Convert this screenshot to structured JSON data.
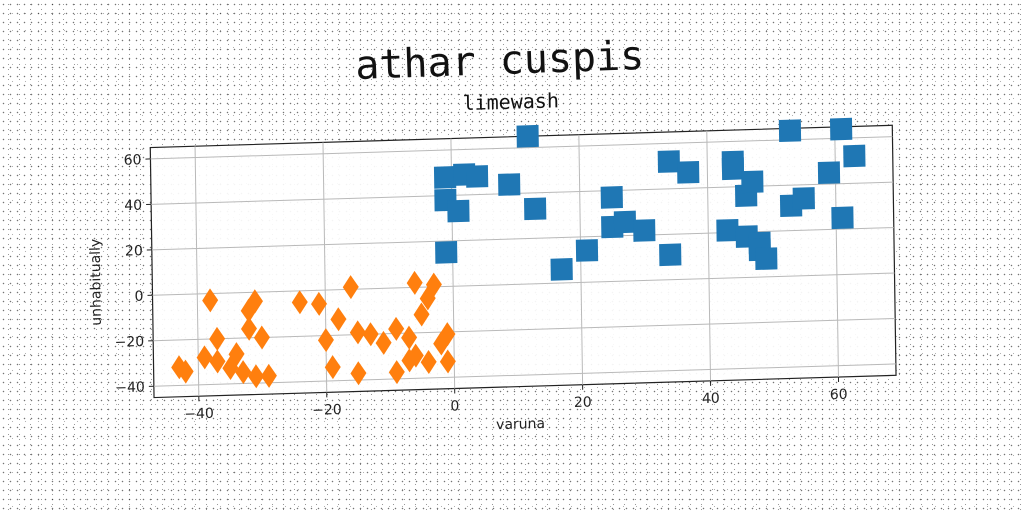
{
  "suptitle": "athar cuspis",
  "chart_data": {
    "type": "scatter",
    "title": "limewash",
    "xlabel": "varuna",
    "ylabel": "unhabitually",
    "xlim": [
      -47,
      69
    ],
    "ylim": [
      -45,
      65
    ],
    "xticks": [
      -40,
      -20,
      0,
      20,
      40,
      60
    ],
    "yticks": [
      -40,
      -20,
      0,
      20,
      40,
      60
    ],
    "grid": true,
    "series": [
      {
        "marker": "square",
        "color": "#1f77b4",
        "points": [
          [
            -1,
            48
          ],
          [
            2,
            49
          ],
          [
            4,
            48
          ],
          [
            -1,
            38
          ],
          [
            1,
            33
          ],
          [
            -1,
            15
          ],
          [
            9,
            44
          ],
          [
            12,
            65
          ],
          [
            13,
            33
          ],
          [
            17,
            6
          ],
          [
            21,
            14
          ],
          [
            25,
            37
          ],
          [
            25,
            24
          ],
          [
            27,
            26
          ],
          [
            30,
            22
          ],
          [
            34,
            11
          ],
          [
            34,
            52
          ],
          [
            37,
            47
          ],
          [
            43,
            21
          ],
          [
            44,
            51
          ],
          [
            44,
            48
          ],
          [
            46,
            36
          ],
          [
            47,
            42
          ],
          [
            46,
            18
          ],
          [
            48,
            15
          ],
          [
            48,
            12
          ],
          [
            49,
            8
          ],
          [
            53,
            64
          ],
          [
            53,
            31
          ],
          [
            55,
            34
          ],
          [
            59,
            45
          ],
          [
            61,
            64
          ],
          [
            61,
            25
          ],
          [
            63,
            52
          ]
        ]
      },
      {
        "marker": "diamond",
        "color": "#ff7f0e",
        "points": [
          [
            -43,
            -32
          ],
          [
            -42,
            -34
          ],
          [
            -39,
            -28
          ],
          [
            -37,
            -30
          ],
          [
            -38,
            -3
          ],
          [
            -37,
            -20
          ],
          [
            -35,
            -33
          ],
          [
            -34,
            -27
          ],
          [
            -33,
            -35
          ],
          [
            -31,
            -37
          ],
          [
            -32,
            -16
          ],
          [
            -32,
            -8
          ],
          [
            -31,
            -4
          ],
          [
            -30,
            -20
          ],
          [
            -29,
            -37
          ],
          [
            -24,
            -5
          ],
          [
            -21,
            -6
          ],
          [
            -20,
            -22
          ],
          [
            -19,
            -34
          ],
          [
            -18,
            -13
          ],
          [
            -16,
            1
          ],
          [
            -15,
            -37
          ],
          [
            -15,
            -19
          ],
          [
            -13,
            -20
          ],
          [
            -11,
            -24
          ],
          [
            -9,
            -18
          ],
          [
            -9,
            -37
          ],
          [
            -7,
            -32
          ],
          [
            -7,
            -22
          ],
          [
            -6,
            -30
          ],
          [
            -6,
            2
          ],
          [
            -5,
            -12
          ],
          [
            -4,
            -5
          ],
          [
            -3,
            1
          ],
          [
            -4,
            -33
          ],
          [
            -2,
            -25
          ],
          [
            -1,
            -21
          ],
          [
            -1,
            -33
          ]
        ]
      }
    ]
  }
}
